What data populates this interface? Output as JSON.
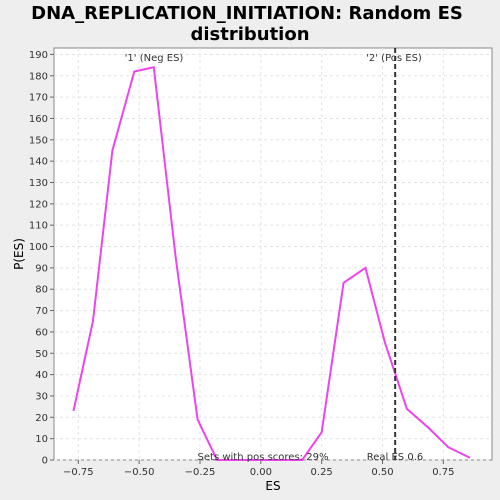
{
  "chart_data": {
    "type": "line",
    "title_line1": "DNA_REPLICATION_INITIATION: Random ES",
    "title_line2": "distribution",
    "xlabel": "ES",
    "ylabel": "P(ES)",
    "xlim": [
      -0.85,
      0.95
    ],
    "ylim": [
      0,
      193
    ],
    "x_ticks": [
      -0.75,
      -0.5,
      -0.25,
      0.0,
      0.25,
      0.5,
      0.75
    ],
    "x_tick_labels": [
      "−0.75",
      "−0.50",
      "−0.25",
      "0.00",
      "0.25",
      "0.50",
      "0.75"
    ],
    "y_ticks": [
      0,
      10,
      20,
      30,
      40,
      50,
      60,
      70,
      80,
      90,
      100,
      110,
      120,
      130,
      140,
      150,
      160,
      170,
      180,
      190
    ],
    "grid": true,
    "series": [
      {
        "color": "#ee44ee",
        "x": [
          -0.77,
          -0.69,
          -0.61,
          -0.52,
          -0.44,
          -0.35,
          -0.26,
          -0.18,
          -0.09,
          0.0,
          0.08,
          0.17,
          0.25,
          0.34,
          0.43,
          0.51,
          0.6,
          0.69,
          0.77,
          0.86
        ],
        "y": [
          23,
          65,
          145,
          182,
          184,
          95,
          19,
          0,
          0,
          0,
          0,
          0,
          13,
          83,
          90,
          55,
          24,
          15,
          6,
          1
        ]
      }
    ],
    "marker": {
      "x": 0.552,
      "label": "Real ES 0.6"
    },
    "neg_label": {
      "text": "'1' (Neg ES)",
      "color": "#3333cc"
    },
    "pos_label": {
      "text": "'2' (Pos ES)",
      "color": "#dd3333"
    },
    "footnote": "Sets with pos scores: 29%"
  }
}
